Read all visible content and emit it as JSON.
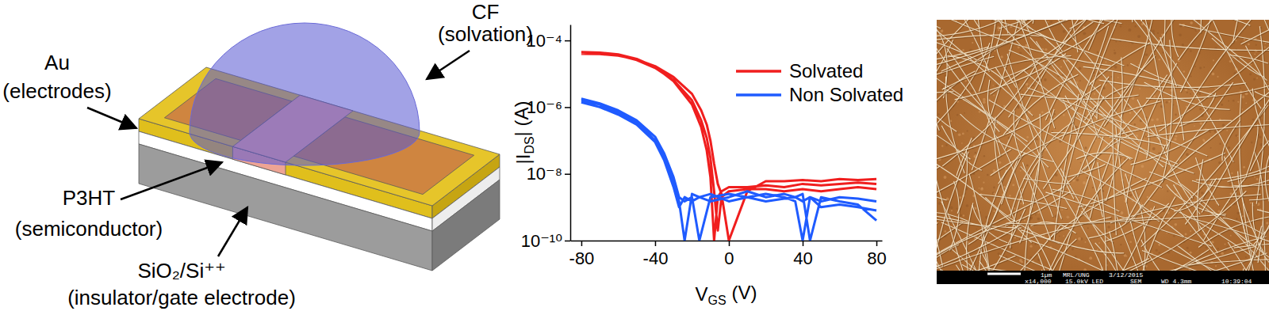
{
  "diagram": {
    "labels": [
      {
        "title": "CF",
        "subtitle": "(solvation)"
      },
      {
        "title": "Au",
        "subtitle": "(electrodes)"
      },
      {
        "title": "P3HT",
        "subtitle": "(semiconductor)"
      },
      {
        "title": "SiO₂/Si⁺⁺",
        "subtitle": "(insulator/gate electrode)"
      }
    ]
  },
  "chart_data": {
    "type": "line",
    "log": "y",
    "grid": false,
    "legend": "top-right",
    "xlabel": [
      "V",
      "GS",
      " (V)"
    ],
    "ylabel": [
      "|I",
      "DS",
      "| (A)"
    ],
    "xlim": [
      -86,
      83
    ],
    "xticks": [
      -80,
      -40,
      0,
      40,
      80
    ],
    "ylim": [
      1e-10,
      0.0003
    ],
    "yticks": [
      {
        "value": 1e-10,
        "label": "10⁻¹⁰"
      },
      {
        "value": 1e-08,
        "label": "10⁻⁸"
      },
      {
        "value": 1e-06,
        "label": "10⁻⁶"
      },
      {
        "value": 0.0001,
        "label": "10⁻⁴"
      }
    ],
    "series": [
      {
        "name": "Solvated",
        "color": "#f01e1e",
        "x": [
          -80,
          -70,
          -60,
          -50,
          -40,
          -30,
          -20,
          -15,
          -12,
          -10,
          -8,
          -6,
          -4,
          0,
          10,
          20,
          30,
          40,
          50,
          60,
          70,
          80,
          null,
          -80,
          -70,
          -60,
          -50,
          -40,
          -30,
          -20,
          -15,
          -12,
          -10,
          -8,
          -6,
          -4,
          0,
          10,
          20,
          30,
          40,
          50,
          60,
          70,
          80,
          null,
          -80,
          -70,
          -60,
          -50,
          -40,
          -30,
          -20,
          -15,
          -12,
          -10,
          -8,
          -6,
          -4,
          0,
          10,
          20,
          30,
          40,
          50,
          60,
          70,
          80
        ],
        "values": [
          4.5e-05,
          4.3e-05,
          3.8e-05,
          2.8e-05,
          1.6e-05,
          6e-06,
          1.2e-06,
          2.5e-07,
          5e-08,
          8e-09,
          1e-10,
          2e-09,
          3e-09,
          4e-09,
          4e-09,
          4.5e-09,
          4e-09,
          5e-09,
          4.5e-09,
          5e-09,
          5.5e-09,
          5e-09,
          null,
          4e-05,
          3.9e-05,
          3.5e-05,
          2.7e-05,
          1.7e-05,
          8e-06,
          2.5e-06,
          8e-07,
          3e-07,
          1e-07,
          2e-08,
          5e-09,
          2.5e-09,
          1e-10,
          3e-09,
          6e-09,
          6e-09,
          6.5e-09,
          6e-09,
          7e-09,
          6.5e-09,
          7e-09,
          null,
          4.2e-05,
          4e-05,
          3.6e-05,
          2.6e-05,
          1.5e-05,
          6.5e-06,
          1.6e-06,
          4e-07,
          1.2e-07,
          3e-08,
          3e-09,
          2e-10,
          2e-09,
          3e-09,
          3.5e-09,
          3.5e-09,
          3e-09,
          3.5e-09,
          3e-09,
          3.5e-09,
          4e-09,
          3.5e-09
        ]
      },
      {
        "name": "Non Solvated",
        "color": "#1f5bff",
        "x": [
          -80,
          -70,
          -60,
          -50,
          -40,
          -35,
          -30,
          -27,
          -24,
          -20,
          -16,
          -10,
          0,
          10,
          20,
          30,
          36,
          40,
          44,
          50,
          60,
          70,
          80,
          null,
          -80,
          -70,
          -60,
          -50,
          -40,
          -35,
          -30,
          -27,
          -24,
          -20,
          -16,
          -10,
          0,
          10,
          20,
          30,
          36,
          40,
          44,
          50,
          60,
          70,
          80,
          null,
          -80,
          -70,
          -60,
          -50,
          -40,
          -35,
          -30,
          -27,
          -24,
          -20,
          -16,
          -10,
          0,
          10,
          20,
          30,
          36,
          40,
          44,
          50,
          60,
          70,
          80
        ],
        "values": [
          1.8e-06,
          1.3e-06,
          8e-07,
          4e-07,
          1.3e-07,
          4e-08,
          8e-09,
          2e-09,
          1.5e-09,
          2e-09,
          1e-10,
          2e-09,
          2.5e-09,
          2e-09,
          2.5e-09,
          2e-09,
          1.5e-09,
          1e-10,
          2e-09,
          1.5e-09,
          2e-09,
          1.8e-09,
          1.5e-09,
          null,
          1.6e-06,
          1.2e-06,
          7e-07,
          3.5e-07,
          1e-07,
          3e-08,
          5e-09,
          1.5e-09,
          1e-10,
          2.5e-09,
          2e-09,
          1.5e-09,
          2e-09,
          3e-09,
          2e-09,
          2.5e-09,
          2e-09,
          2.5e-09,
          1e-10,
          2e-09,
          1.5e-09,
          1.2e-09,
          4e-10,
          null,
          1.4e-06,
          1e-06,
          6e-07,
          3e-07,
          9e-08,
          2.5e-08,
          4e-09,
          1e-09,
          2e-09,
          1.5e-09,
          2e-09,
          2.5e-09,
          1.5e-09,
          2e-09,
          1.5e-09,
          1.8e-09,
          2e-09,
          1.5e-09,
          2e-09,
          1e-09,
          1.2e-09,
          1e-09,
          8e-10
        ]
      }
    ]
  },
  "micrograph": {
    "footer": [
      [
        "1µm",
        "MRL/UNG",
        "3/12/2015"
      ],
      [
        "x14,000",
        "15.0kV LED",
        "SEM",
        "WD 4.3mm",
        "10:39:04"
      ]
    ]
  }
}
